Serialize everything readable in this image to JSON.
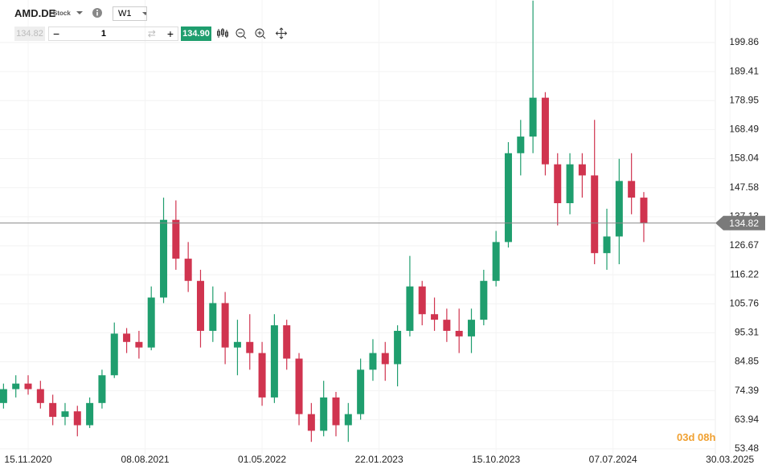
{
  "header": {
    "symbol": "AMD.DE",
    "instrument_type": "Stock",
    "timeframe": "W1"
  },
  "toolbar": {
    "sell_price": "134.82",
    "quantity": "1",
    "buy_price": "134.90"
  },
  "countdown": "03d 08h",
  "chart_data": {
    "type": "candlestick",
    "x": [
      "20.09.2020",
      "18.10.2020",
      "15.11.2020",
      "13.12.2020",
      "10.01.2021",
      "07.02.2021",
      "07.03.2021",
      "04.04.2021",
      "02.05.2021",
      "30.05.2021",
      "27.06.2021",
      "25.07.2021",
      "22.08.2021",
      "19.09.2021",
      "17.10.2021",
      "14.11.2021",
      "12.12.2021",
      "09.01.2022",
      "06.02.2022",
      "06.03.2022",
      "03.04.2022",
      "01.05.2022",
      "29.05.2022",
      "26.06.2022",
      "24.07.2022",
      "21.08.2022",
      "18.09.2022",
      "16.10.2022",
      "13.11.2022",
      "11.12.2022",
      "08.01.2023",
      "05.02.2023",
      "05.03.2023",
      "02.04.2023",
      "30.04.2023",
      "28.05.2023",
      "25.06.2023",
      "23.07.2023",
      "20.08.2023",
      "17.09.2023",
      "15.10.2023",
      "12.11.2023",
      "10.12.2023",
      "07.01.2024",
      "04.02.2024",
      "03.03.2024",
      "31.03.2024",
      "28.04.2024",
      "26.05.2024",
      "23.06.2024",
      "21.07.2024",
      "18.08.2024",
      "15.09.2024"
    ],
    "open": [
      70,
      75,
      77,
      75,
      70,
      65,
      67,
      62,
      70,
      80,
      95,
      92,
      90,
      108,
      136,
      122,
      114,
      96,
      106,
      90,
      92,
      88,
      72,
      98,
      86,
      66,
      60,
      72,
      62,
      66,
      82,
      88,
      84,
      96,
      112,
      102,
      100,
      96,
      94,
      100,
      114,
      128,
      160,
      166,
      180,
      156,
      142,
      156,
      152,
      124,
      130,
      150,
      144
    ],
    "high": [
      77,
      80,
      80,
      78,
      73,
      70,
      69,
      72,
      82,
      99,
      97,
      96,
      112,
      144,
      143,
      128,
      118,
      112,
      110,
      100,
      102,
      92,
      102,
      100,
      88,
      70,
      78,
      74,
      70,
      86,
      93,
      92,
      98,
      123,
      114,
      108,
      104,
      104,
      104,
      118,
      132,
      164,
      172,
      215,
      182,
      160,
      160,
      160,
      172,
      140,
      158,
      160,
      146
    ],
    "low": [
      68,
      72,
      73,
      68,
      62,
      62,
      58,
      61,
      68,
      79,
      88,
      86,
      89,
      106,
      118,
      110,
      90,
      92,
      84,
      80,
      82,
      69,
      70,
      82,
      62,
      56,
      58,
      58,
      56,
      64,
      78,
      78,
      76,
      94,
      98,
      96,
      92,
      88,
      88,
      98,
      112,
      126,
      152,
      160,
      152,
      134,
      138,
      144,
      120,
      118,
      120,
      138,
      128
    ],
    "close": [
      75,
      77,
      75,
      70,
      65,
      67,
      62,
      70,
      80,
      95,
      92,
      90,
      108,
      136,
      122,
      114,
      96,
      106,
      90,
      92,
      88,
      72,
      98,
      86,
      66,
      60,
      72,
      62,
      66,
      82,
      88,
      84,
      96,
      112,
      102,
      100,
      96,
      94,
      100,
      114,
      128,
      160,
      166,
      180,
      156,
      142,
      156,
      152,
      124,
      130,
      150,
      144,
      134.82
    ],
    "up_color": "#1f9e6e",
    "down_color": "#d0344f",
    "last_price": 134.82,
    "ylim": [
      52.3,
      215.2
    ],
    "yticks": [
      53.48,
      63.94,
      74.39,
      84.85,
      95.31,
      105.76,
      116.22,
      126.67,
      137.13,
      147.58,
      158.04,
      168.49,
      178.95,
      189.41,
      199.86
    ],
    "xlim": [
      "12.09.2020",
      "29.06.2025"
    ],
    "xticks": [
      "15.11.2020",
      "08.08.2021",
      "01.05.2022",
      "22.01.2023",
      "15.10.2023",
      "07.07.2024",
      "30.03.2025"
    ],
    "grid": true
  }
}
